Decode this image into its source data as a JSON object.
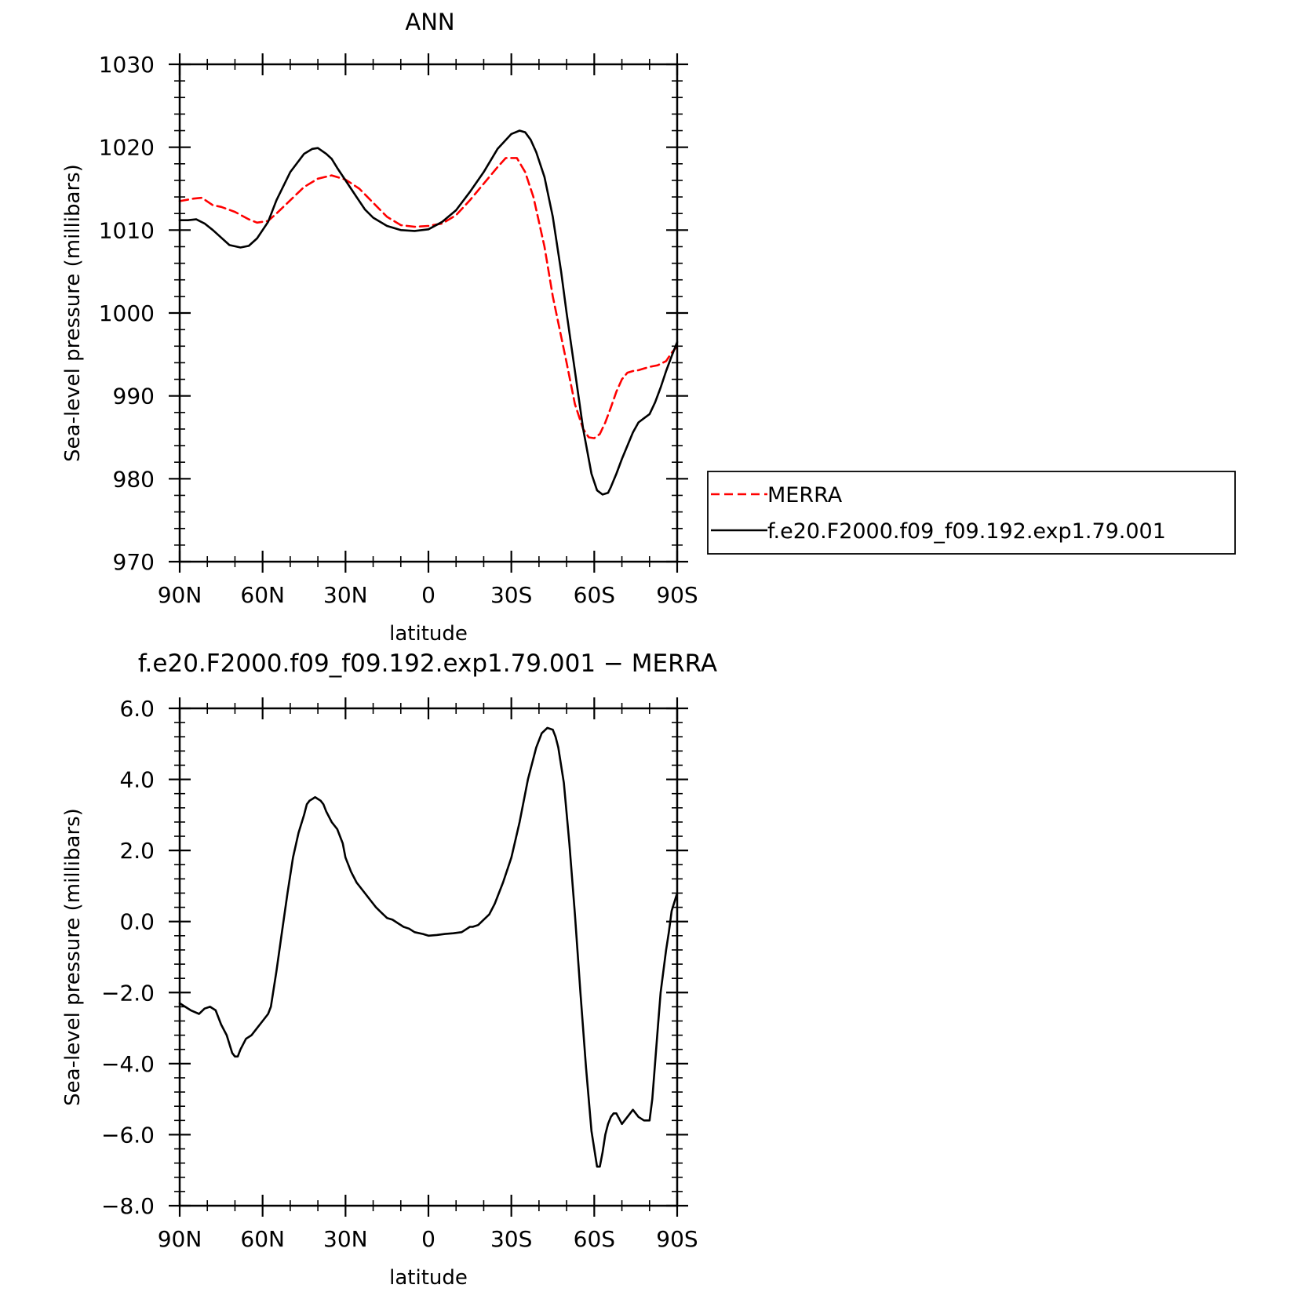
{
  "colors": {
    "merra": "#ff0000",
    "model": "#000000",
    "axes": "#000000"
  },
  "chart_data": [
    {
      "type": "line",
      "title": "ANN",
      "xlabel": "latitude",
      "ylabel": "Sea-level pressure (millibars)",
      "xlim": [
        90,
        -90
      ],
      "ylim": [
        970,
        1030
      ],
      "xticks": [
        90,
        60,
        30,
        0,
        -30,
        -60,
        -90
      ],
      "xtick_labels": [
        "90N",
        "60N",
        "30N",
        "0",
        "30S",
        "60S",
        "90S"
      ],
      "yticks": [
        970,
        980,
        990,
        1000,
        1010,
        1020,
        1030
      ],
      "ytick_labels": [
        "970",
        "980",
        "990",
        "1000",
        "1010",
        "1020",
        "1030"
      ],
      "legend": {
        "placement": "right"
      },
      "series": [
        {
          "name": "MERRA",
          "style": "dashed",
          "color": "#ff0000",
          "x": [
            90,
            85,
            82,
            78,
            75,
            70,
            65,
            62,
            58,
            55,
            50,
            45,
            40,
            35,
            30,
            25,
            20,
            15,
            10,
            5,
            0,
            -5,
            -10,
            -15,
            -20,
            -25,
            -28,
            -32,
            -35,
            -38,
            -42,
            -45,
            -50,
            -53,
            -56,
            -58,
            -60,
            -62,
            -64,
            -66,
            -68,
            -70,
            -72,
            -74,
            -76,
            -78,
            -80,
            -83,
            -86,
            -88,
            -90
          ],
          "y": [
            1013.5,
            1013.8,
            1013.9,
            1013.0,
            1012.8,
            1012.2,
            1011.3,
            1010.9,
            1011.1,
            1012.0,
            1013.6,
            1015.2,
            1016.2,
            1016.6,
            1016.1,
            1015.0,
            1013.3,
            1011.6,
            1010.6,
            1010.4,
            1010.5,
            1010.8,
            1011.8,
            1013.6,
            1015.6,
            1017.6,
            1018.7,
            1018.7,
            1017.0,
            1014.0,
            1008.0,
            1002.0,
            994.0,
            989.0,
            986.0,
            985.0,
            984.9,
            985.4,
            986.8,
            988.6,
            990.5,
            992.0,
            992.8,
            993.0,
            993.1,
            993.3,
            993.5,
            993.7,
            994.2,
            995.2,
            996.0
          ]
        },
        {
          "name": "f.e20.F2000.f09_f09.192.exp1.79.001",
          "style": "solid",
          "color": "#000000",
          "x": [
            90,
            87,
            84,
            81,
            78,
            75,
            72,
            68,
            65,
            62,
            58,
            55,
            50,
            45,
            42,
            40,
            37,
            35,
            33,
            30,
            26,
            23,
            20,
            15,
            10,
            5,
            0,
            -5,
            -10,
            -15,
            -20,
            -25,
            -30,
            -33,
            -35,
            -37,
            -39,
            -42,
            -45,
            -48,
            -50,
            -53,
            -56,
            -59,
            -61,
            -63,
            -65,
            -66,
            -67,
            -68,
            -70,
            -72,
            -74,
            -76,
            -78,
            -80,
            -82,
            -84,
            -86,
            -88,
            -90
          ],
          "y": [
            1011.2,
            1011.2,
            1011.3,
            1010.8,
            1010.0,
            1009.1,
            1008.2,
            1007.9,
            1008.1,
            1009.0,
            1011.0,
            1013.6,
            1017.0,
            1019.2,
            1019.8,
            1019.9,
            1019.2,
            1018.6,
            1017.5,
            1016.0,
            1014.0,
            1012.5,
            1011.5,
            1010.5,
            1010.0,
            1009.9,
            1010.1,
            1011.0,
            1012.4,
            1014.6,
            1017.0,
            1019.8,
            1021.6,
            1022.0,
            1021.8,
            1020.9,
            1019.4,
            1016.4,
            1011.6,
            1005.0,
            1000.0,
            993.0,
            986.0,
            980.6,
            978.6,
            978.1,
            978.3,
            979.0,
            979.8,
            980.6,
            982.4,
            984.0,
            985.6,
            986.8,
            987.3,
            987.8,
            989.2,
            991.0,
            993.0,
            994.8,
            996.5
          ]
        }
      ]
    },
    {
      "type": "line",
      "title": "f.e20.F2000.f09_f09.192.exp1.79.001 − MERRA",
      "xlabel": "latitude",
      "ylabel": "Sea-level pressure (millibars)",
      "xlim": [
        90,
        -90
      ],
      "ylim": [
        -8,
        6
      ],
      "xticks": [
        90,
        60,
        30,
        0,
        -30,
        -60,
        -90
      ],
      "xtick_labels": [
        "90N",
        "60N",
        "30N",
        "0",
        "30S",
        "60S",
        "90S"
      ],
      "yticks": [
        -8,
        -6,
        -4,
        -2,
        0,
        2,
        4,
        6
      ],
      "ytick_labels": [
        "−8.0",
        "−6.0",
        "−4.0",
        "−2.0",
        "0.0",
        "2.0",
        "4.0",
        "6.0"
      ],
      "series": [
        {
          "style": "solid",
          "color": "#000000",
          "x": [
            90,
            88,
            86,
            83,
            81,
            79,
            77,
            75,
            73,
            71,
            70,
            69,
            68,
            66,
            64,
            62,
            60,
            59,
            58,
            57,
            55,
            53,
            51,
            49,
            47,
            45,
            44,
            43,
            42,
            41,
            40,
            39,
            38,
            37,
            35,
            33,
            31,
            30,
            29,
            28,
            26,
            23,
            21,
            19,
            17,
            15,
            13,
            11,
            9,
            7,
            5,
            2,
            0,
            -3,
            -6,
            -9,
            -12,
            -14,
            -15,
            -16,
            -18,
            -20,
            -22,
            -24,
            -27,
            -30,
            -33,
            -36,
            -39,
            -41,
            -43,
            -45,
            -46,
            -47,
            -49,
            -51,
            -53,
            -55,
            -57,
            -59,
            -61,
            -62,
            -63,
            -64,
            -65,
            -66,
            -67,
            -68,
            -70,
            -72,
            -74,
            -75,
            -76,
            -78,
            -80,
            -81,
            -82,
            -83,
            -84,
            -85,
            -86,
            -87,
            -88,
            -90
          ],
          "y": [
            -2.3,
            -2.4,
            -2.5,
            -2.6,
            -2.45,
            -2.4,
            -2.5,
            -2.9,
            -3.2,
            -3.7,
            -3.8,
            -3.8,
            -3.6,
            -3.3,
            -3.2,
            -3.0,
            -2.8,
            -2.7,
            -2.6,
            -2.4,
            -1.4,
            -0.3,
            0.8,
            1.8,
            2.5,
            3.0,
            3.3,
            3.4,
            3.45,
            3.5,
            3.45,
            3.4,
            3.3,
            3.1,
            2.8,
            2.6,
            2.2,
            1.8,
            1.6,
            1.4,
            1.1,
            0.8,
            0.6,
            0.4,
            0.25,
            0.1,
            0.05,
            -0.05,
            -0.15,
            -0.2,
            -0.3,
            -0.35,
            -0.4,
            -0.38,
            -0.35,
            -0.33,
            -0.3,
            -0.2,
            -0.15,
            -0.15,
            -0.1,
            0.05,
            0.2,
            0.5,
            1.1,
            1.8,
            2.8,
            4.0,
            4.9,
            5.3,
            5.45,
            5.4,
            5.2,
            4.9,
            3.9,
            2.2,
            0.2,
            -2.0,
            -4.1,
            -5.9,
            -6.9,
            -6.9,
            -6.5,
            -6.0,
            -5.7,
            -5.5,
            -5.4,
            -5.4,
            -5.7,
            -5.5,
            -5.3,
            -5.4,
            -5.5,
            -5.6,
            -5.6,
            -5.0,
            -4.0,
            -3.0,
            -2.0,
            -1.4,
            -0.8,
            -0.3,
            0.3,
            0.8
          ]
        }
      ]
    }
  ]
}
